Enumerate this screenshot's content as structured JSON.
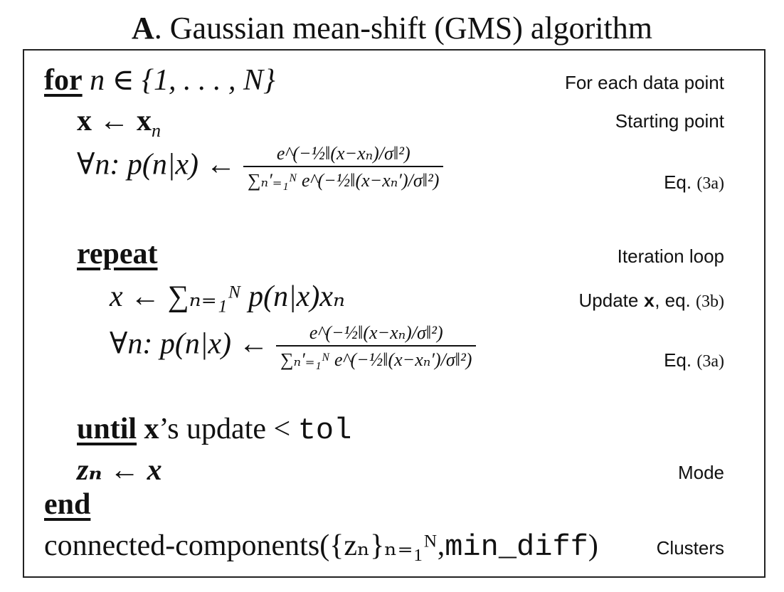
{
  "title": {
    "letter": "A",
    "text": ". Gaussian mean-shift (GMS) algorithm"
  },
  "lines": {
    "for_kw": "for",
    "for_expr": "n ∈ {1, . . . , N}",
    "for_note": "For each data point",
    "start_lhs": "x",
    "start_arrow": "←",
    "start_rhs": "x",
    "start_sub": "n",
    "start_note": "Starting point",
    "post1_lhs": "∀n: p(n|x) ←",
    "post1_num": "e^(−½‖(x−xₙ)/σ‖²)",
    "post1_den": "∑ₙ′₌₁ᴺ e^(−½‖(x−xₙ′)/σ‖²)",
    "post1_note_text": "Eq.",
    "post1_note_ref": "(3a)",
    "repeat_kw": "repeat",
    "repeat_note": "Iteration loop",
    "update_expr": "x ← ∑ₙ₌₁ᴺ p(n|x)xₙ",
    "update_note_text": "Update",
    "update_note_var": "x",
    "update_note_eq": ", eq.",
    "update_note_ref": "(3b)",
    "post2_lhs": "∀n: p(n|x) ←",
    "post2_num": "e^(−½‖(x−xₙ)/σ‖²)",
    "post2_den": "∑ₙ′₌₁ᴺ e^(−½‖(x−xₙ′)/σ‖²)",
    "post2_note_text": "Eq.",
    "post2_note_ref": "(3a)",
    "until_kw": "until",
    "until_var": "x",
    "until_text": "’s update <",
    "until_tol": "tol",
    "mode_expr": "zₙ ← x",
    "mode_note": "Mode",
    "end_kw": "end",
    "cc_text": "connected-components({zₙ}ₙ₌₁ᴺ,",
    "cc_mono": "min_diff",
    "cc_close": ")",
    "cc_note": "Clusters"
  }
}
